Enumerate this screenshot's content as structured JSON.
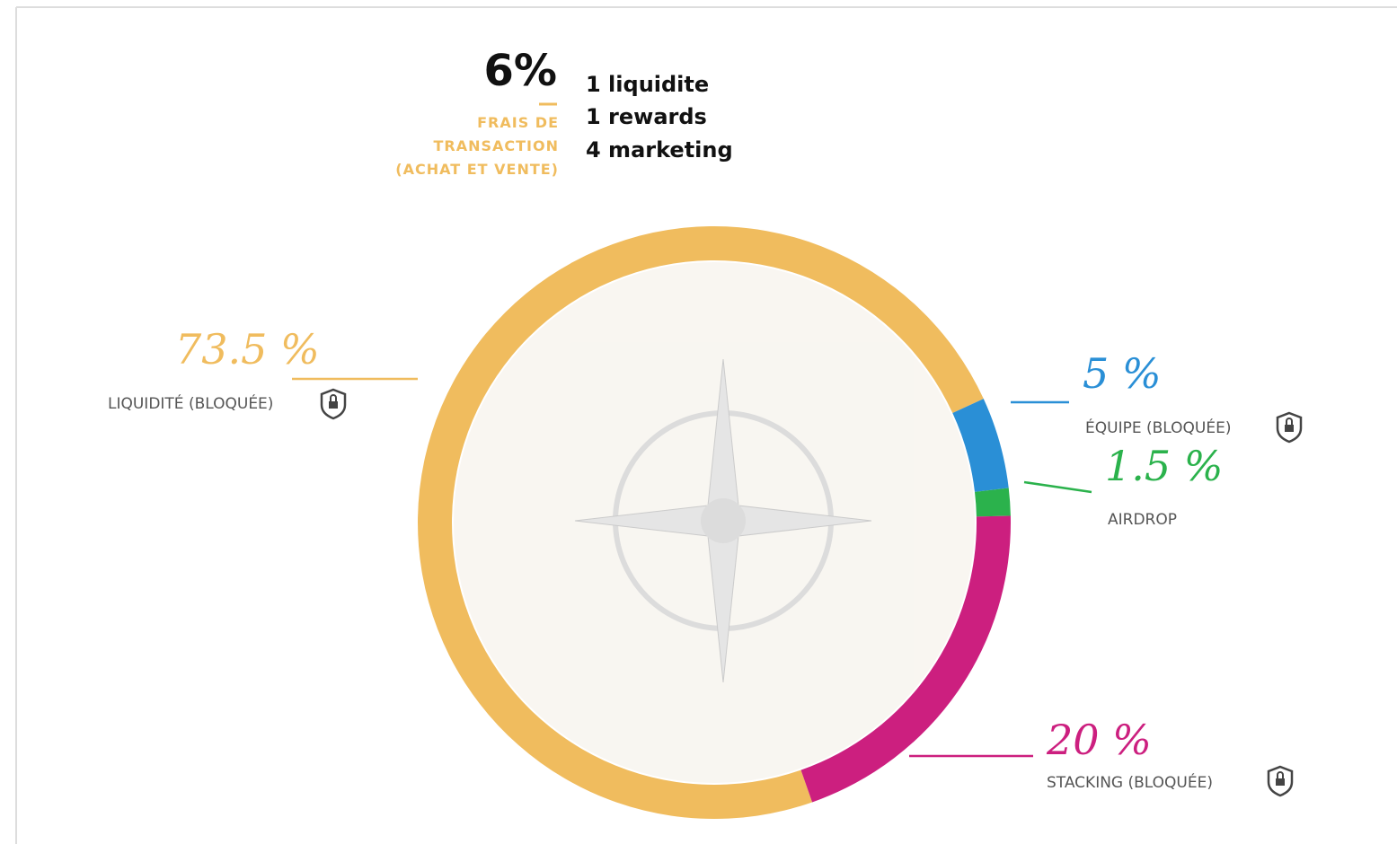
{
  "chart_data": {
    "type": "donut",
    "categories": [
      "LIQUIDITÉ (BLOQUÉE)",
      "ÉQUIPE (BLOQUÉE)",
      "AIRDROP",
      "STACKING (BLOQUÉE)"
    ],
    "values": [
      73.5,
      5,
      1.5,
      20
    ],
    "value_labels": [
      "73.5 %",
      "5 %",
      "1.5 %",
      "20 %"
    ],
    "colors": [
      "#f0bc5e",
      "#2a8fd6",
      "#2bb24c",
      "#cc1f7f"
    ],
    "fees": {
      "total": "6%",
      "caption": [
        "FRAIS DE",
        "TRANSACTION",
        "(ACHAT ET VENTE)"
      ],
      "items": [
        "1 liquidite",
        "1 rewards",
        "4 marketing"
      ]
    }
  }
}
